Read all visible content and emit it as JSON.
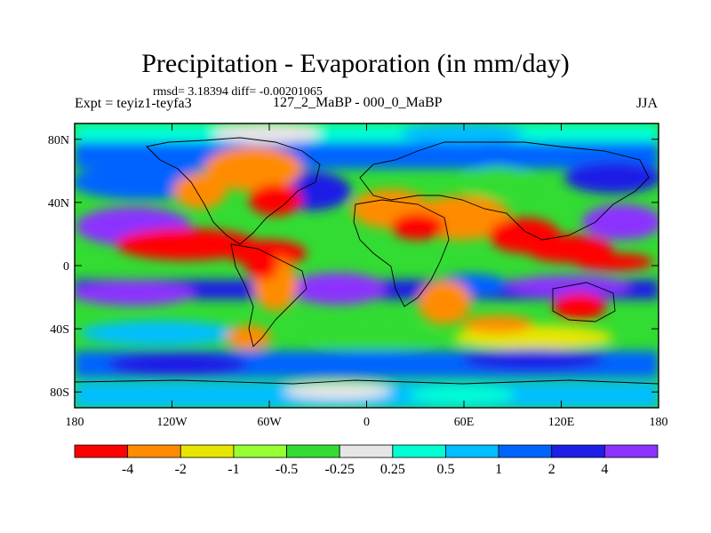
{
  "title": "Precipitation - Evaporation (in mm/day)",
  "stats_line": "rmsd= 3.18394 diff= -0.00201065",
  "experiment": "Expt = teyiz1-teyfa3",
  "period": "127_2_MaBP - 000_0_MaBP",
  "season": "JJA",
  "map": {
    "lat_range": [
      -90,
      90
    ],
    "lon_range": [
      -180,
      180
    ],
    "lat_ticks": [
      {
        "value": 80,
        "label": "80N"
      },
      {
        "value": 40,
        "label": "40N"
      },
      {
        "value": 0,
        "label": "0"
      },
      {
        "value": -40,
        "label": "40S"
      },
      {
        "value": -80,
        "label": "80S"
      }
    ],
    "lon_ticks": [
      {
        "value": -180,
        "label": "180"
      },
      {
        "value": -120,
        "label": "120W"
      },
      {
        "value": -60,
        "label": "60W"
      },
      {
        "value": 0,
        "label": "0"
      },
      {
        "value": 60,
        "label": "60E"
      },
      {
        "value": 120,
        "label": "120E"
      },
      {
        "value": 180,
        "label": "180"
      }
    ]
  },
  "colorbar": {
    "colors": [
      "#ff0000",
      "#ff8c00",
      "#e6e600",
      "#96ff32",
      "#32dc32",
      "#e6e6e6",
      "#00ffd2",
      "#00beff",
      "#0064ff",
      "#1e1ee6",
      "#8c32ff"
    ],
    "labels": [
      "-4",
      "-2",
      "-1",
      "-0.5",
      "-0.25",
      "0.25",
      "0.5",
      "1",
      "2",
      "4"
    ]
  }
}
